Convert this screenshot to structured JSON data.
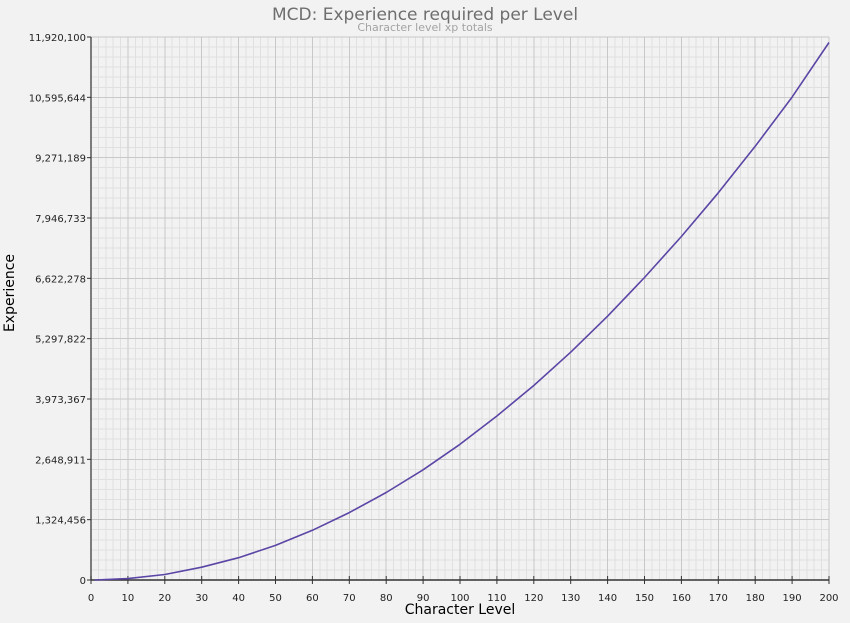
{
  "chart_data": {
    "type": "line",
    "title": "MCD: Experience required per Level",
    "subtitle": "Character level xp totals",
    "xlabel": "Character Level",
    "ylabel": "Experience",
    "xlim": [
      0,
      200
    ],
    "ylim": [
      0,
      11920100
    ],
    "x_ticks": [
      0,
      10,
      20,
      30,
      40,
      50,
      60,
      70,
      80,
      90,
      100,
      110,
      120,
      130,
      140,
      150,
      160,
      170,
      180,
      190,
      200
    ],
    "y_ticks": [
      0,
      1324456,
      2648911,
      3973367,
      5297822,
      6622278,
      7946733,
      9271189,
      10595644,
      11920100
    ],
    "y_tick_labels": [
      "0",
      "1,324,456",
      "2,648,911",
      "3,973,367",
      "5,297,822",
      "6,622,278",
      "7,946,733",
      "9,271,189",
      "10,595,644",
      "11,920,100"
    ],
    "grid": true,
    "legend": null,
    "series": [
      {
        "name": "Experience",
        "color": "#5b45a5",
        "x": [
          1,
          10,
          20,
          30,
          40,
          50,
          60,
          70,
          80,
          90,
          100,
          110,
          120,
          130,
          140,
          150,
          160,
          170,
          180,
          190,
          200
        ],
        "values": [
          0,
          30000,
          120000,
          280000,
          490000,
          760000,
          1090000,
          1480000,
          1920000,
          2420000,
          2980000,
          3600000,
          4270000,
          5000000,
          5790000,
          6640000,
          7540000,
          8500000,
          9520000,
          10600000,
          11800000
        ]
      }
    ]
  },
  "colors": {
    "background": "#f2f2f2",
    "plot_bg": "#f2f2f2",
    "grid_major": "#c8c8c8",
    "grid_minor": "#e0e0e0",
    "line": "#5b45a5"
  }
}
